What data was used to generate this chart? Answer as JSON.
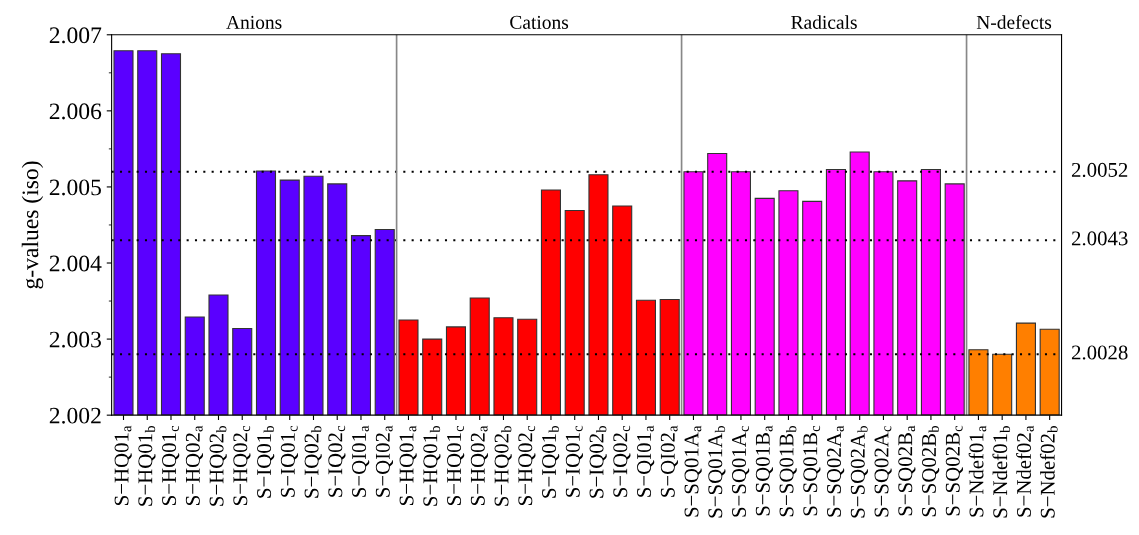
{
  "chart_data": {
    "type": "bar",
    "ylabel": "g-values (iso)",
    "categories": [
      "S−HQ01$_{a}$",
      "S−HQ01$_{b}$",
      "S−HQ01$_{c}$",
      "S−HQ02$_{a}$",
      "S−HQ02$_{b}$",
      "S−HQ02$_{c}$",
      "S−IQ01$_{b}$",
      "S−IQ01$_{c}$",
      "S−IQ02$_{b}$",
      "S−IQ02$_{c}$",
      "S−QI01$_{a}$",
      "S−QI02$_{a}$",
      "S−HQ01$_{a}$",
      "S−HQ01$_{b}$",
      "S−HQ01$_{c}$",
      "S−HQ02$_{a}$",
      "S−HQ02$_{b}$",
      "S−HQ02$_{c}$",
      "S−IQ01$_{b}$",
      "S−IQ01$_{c}$",
      "S−IQ02$_{b}$",
      "S−IQ02$_{c}$",
      "S−QI01$_{a}$",
      "S−QI02$_{a}$",
      "S−SQ01A$_{a}$",
      "S−SQ01A$_{b}$",
      "S−SQ01A$_{c}$",
      "S−SQ01B$_{a}$",
      "S−SQ01B$_{b}$",
      "S−SQ01B$_{c}$",
      "S−SQ02A$_{a}$",
      "S−SQ02A$_{b}$",
      "S−SQ02A$_{c}$",
      "S−SQ02B$_{a}$",
      "S−SQ02B$_{b}$",
      "S−SQ02B$_{c}$",
      "S−Ndef01$_{a}$",
      "S−Ndef01$_{b}$",
      "S−Ndef02$_{a}$",
      "S−Ndef02$_{b}$"
    ],
    "values": [
      2.00679,
      2.00679,
      2.00675,
      2.00329,
      2.00358,
      2.00314,
      2.00521,
      2.00509,
      2.00514,
      2.00504,
      2.00436,
      2.00444,
      2.00325,
      2.003,
      2.00316,
      2.00354,
      2.00328,
      2.00326,
      2.00496,
      2.00469,
      2.00516,
      2.00475,
      2.00351,
      2.00352,
      2.0052,
      2.00544,
      2.0052,
      2.00485,
      2.00495,
      2.00481,
      2.00523,
      2.00546,
      2.0052,
      2.00508,
      2.00523,
      2.00504,
      2.00286,
      2.0028,
      2.00321,
      2.00313
    ],
    "colors": [
      "#5a00ff",
      "#5a00ff",
      "#5a00ff",
      "#5a00ff",
      "#5a00ff",
      "#5a00ff",
      "#5a00ff",
      "#5a00ff",
      "#5a00ff",
      "#5a00ff",
      "#5a00ff",
      "#5a00ff",
      "#ff0000",
      "#ff0000",
      "#ff0000",
      "#ff0000",
      "#ff0000",
      "#ff0000",
      "#ff0000",
      "#ff0000",
      "#ff0000",
      "#ff0000",
      "#ff0000",
      "#ff0000",
      "#ff00ff",
      "#ff00ff",
      "#ff00ff",
      "#ff00ff",
      "#ff00ff",
      "#ff00ff",
      "#ff00ff",
      "#ff00ff",
      "#ff00ff",
      "#ff00ff",
      "#ff00ff",
      "#ff00ff",
      "#ff7f00",
      "#ff7f00",
      "#ff7f00",
      "#ff7f00"
    ],
    "annotations": [
      "Anions",
      "Cations",
      "Radicals",
      "N-defects"
    ],
    "ylim": [
      2.002,
      2.007
    ],
    "yticks": [
      2.002,
      2.003,
      2.004,
      2.005,
      2.006,
      2.007
    ],
    "ref_lines": [
      {
        "axis": "y",
        "value": 2.0052,
        "label": "2.0052",
        "color": "#000000",
        "line_style": "dotted"
      },
      {
        "axis": "y",
        "value": 2.0043,
        "label": "2.0043",
        "color": "#000000",
        "line_style": "dotted"
      },
      {
        "axis": "y",
        "value": 2.0028,
        "label": "2.0028",
        "color": "#000000",
        "line_style": "dotted"
      }
    ],
    "grid": false,
    "legend": false
  }
}
